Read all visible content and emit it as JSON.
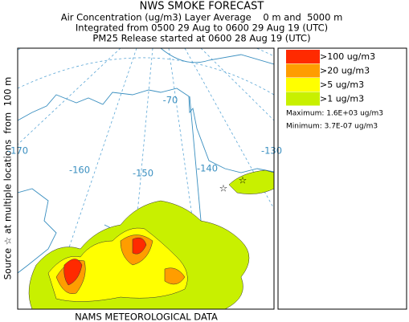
{
  "header": {
    "title": "NWS SMOKE FORECAST",
    "lines": [
      "Air Concentration (ug/m3) Layer Average    0 m and  5000 m",
      "Integrated from 0500 29 Aug to 0600 29 Aug 19 (UTC)",
      "PM25 Release started at 0600 28 Aug 19 (UTC)"
    ]
  },
  "side_label": "Source ☆ at multiple locations  from  100 m",
  "footer": "NAMS METEOROLOGICAL DATA",
  "map": {
    "longitude_labels": [
      "-170",
      "-160",
      "-150",
      "-140",
      "-130"
    ],
    "latitude_label": "-70"
  },
  "legend": {
    "items": [
      {
        "label": ">100 ug/m3",
        "color": "#ff2a00"
      },
      {
        "label": ">20 ug/m3",
        "color": "#ff9d00"
      },
      {
        "label": ">5 ug/m3",
        "color": "#ffff00"
      },
      {
        "label": ">1 ug/m3",
        "color": "#c8f000"
      }
    ],
    "maximum": "Maximum: 1.6E+03 ug/m3",
    "minimum": "Minimum: 3.7E-07 ug/m3"
  }
}
